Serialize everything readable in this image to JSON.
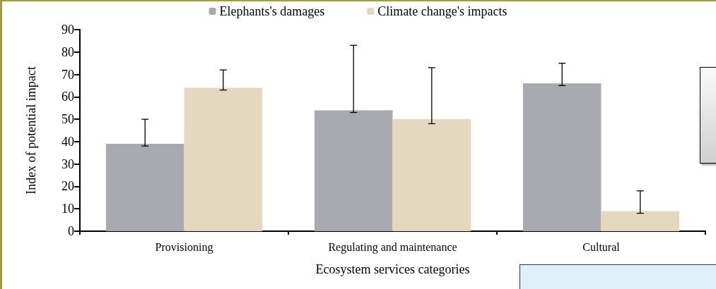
{
  "chart_data": {
    "type": "bar",
    "xlabel": "Ecosystem services categories",
    "ylabel": "Index of potential impact",
    "categories": [
      "Provisioning",
      "Regulating and maintenance",
      "Cultural"
    ],
    "series": [
      {
        "name": "Elephants's damages",
        "color": "#a9a9b0",
        "values": [
          39,
          54,
          66
        ],
        "errors": [
          [
            38,
            50
          ],
          [
            53,
            83
          ],
          [
            65,
            75
          ]
        ]
      },
      {
        "name": "Climate change's impacts",
        "color": "#e4d9c0",
        "values": [
          64,
          50,
          9
        ],
        "errors": [
          [
            63,
            72
          ],
          [
            48,
            73
          ],
          [
            8,
            18
          ]
        ]
      }
    ],
    "ylim": [
      0,
      90
    ],
    "yticks": [
      0,
      10,
      20,
      30,
      40,
      50,
      60,
      70,
      80,
      90
    ],
    "grid": false,
    "legend": "top"
  }
}
